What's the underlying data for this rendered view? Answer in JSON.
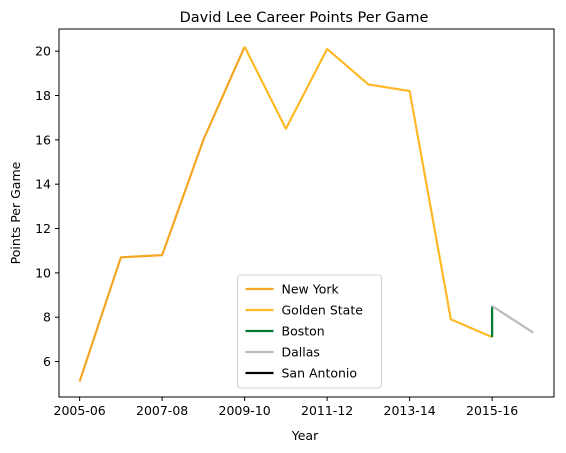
{
  "chart_data": {
    "type": "line",
    "title": "David Lee  Career Points Per Game",
    "xlabel": "Year",
    "ylabel": "Points Per Game",
    "x": [
      "2005-06",
      "2006-07",
      "2007-08",
      "2008-09",
      "2009-10",
      "2010-11",
      "2011-12",
      "2012-13",
      "2013-14",
      "2014-15",
      "2015-16",
      "2016-17"
    ],
    "xticks": [
      "2005-06",
      "2007-08",
      "2009-10",
      "2011-12",
      "2013-14",
      "2015-16"
    ],
    "xlim": [
      -0.5,
      11.5
    ],
    "ylim": [
      4.4,
      21.0
    ],
    "yticks": [
      6,
      8,
      10,
      12,
      14,
      16,
      18,
      20
    ],
    "grid": false,
    "legend_position": "lower-center",
    "series": [
      {
        "name": "New York",
        "color": "#F5A623",
        "points": [
          [
            0,
            5.1
          ],
          [
            1,
            10.7
          ],
          [
            2,
            10.8
          ],
          [
            3,
            16.0
          ],
          [
            4,
            20.2
          ]
        ]
      },
      {
        "name": "Golden State",
        "color": "#FDB927",
        "points": [
          [
            4,
            20.2
          ],
          [
            5,
            16.5
          ],
          [
            6,
            20.1
          ],
          [
            7,
            18.5
          ],
          [
            8,
            18.2
          ],
          [
            9,
            7.9
          ],
          [
            10,
            7.1
          ]
        ]
      },
      {
        "name": "Boston",
        "color": "#007A33",
        "points": [
          [
            10,
            7.1
          ],
          [
            10,
            8.5
          ]
        ]
      },
      {
        "name": "Dallas",
        "color": "#BBBBBB",
        "points": [
          [
            10,
            8.5
          ],
          [
            11,
            7.3
          ]
        ]
      },
      {
        "name": "San Antonio",
        "color": "#000000",
        "points": []
      }
    ]
  }
}
